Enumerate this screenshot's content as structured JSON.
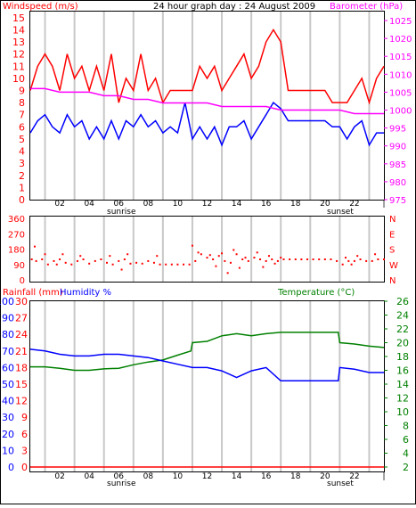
{
  "chart_data": [
    {
      "type": "line",
      "title": "24 hour graph day : 24 August 2009",
      "left_axis_label": "Windspeed (m/s)",
      "right_axis_label": "Barometer (hPa)",
      "left_ticks": [
        "0",
        "1",
        "2",
        "3",
        "4",
        "5",
        "6",
        "7",
        "8",
        "9",
        "10",
        "11",
        "12",
        "13",
        "14",
        "15"
      ],
      "right_ticks": [
        "975",
        "980",
        "985",
        "990",
        "995",
        "1000",
        "1005",
        "1010",
        "1015",
        "1020",
        "1025"
      ],
      "ylim_left": [
        0,
        15.5
      ],
      "ylim_right": [
        975,
        1027.5
      ],
      "x_ticks": [
        "02",
        "04",
        "06",
        "08",
        "10",
        "12",
        "14",
        "16",
        "18",
        "20",
        "22",
        "|"
      ],
      "x_annotations": [
        "sunrise",
        "sunset"
      ],
      "xlim_hours": [
        0,
        24
      ],
      "grid": true,
      "colors": {
        "gust": "#ff0000",
        "average": "#0000ff",
        "barometer": "#ff00ff"
      },
      "series": [
        {
          "role": "gust",
          "x": [
            0,
            0.5,
            1,
            1.5,
            2,
            2.5,
            3,
            3.5,
            4,
            4.5,
            5,
            5.5,
            6,
            6.5,
            7,
            7.5,
            8,
            8.5,
            9,
            9.5,
            10,
            10.5,
            11,
            11.5,
            12,
            12.5,
            13,
            13.5,
            14,
            14.5,
            15,
            15.5,
            16,
            16.5,
            17,
            17.5,
            18,
            18.5,
            19,
            19.5,
            20,
            20.5,
            21,
            21.5,
            22,
            22.5,
            23,
            23.5,
            24
          ],
          "values": [
            9,
            11,
            12,
            11,
            9,
            12,
            10,
            11,
            9,
            11,
            9,
            12,
            8,
            10,
            9,
            12,
            9,
            10,
            8,
            9,
            9,
            9,
            9,
            11,
            10,
            11,
            9,
            10,
            11,
            12,
            10,
            11,
            13,
            14,
            13,
            9,
            9,
            9,
            9,
            9,
            9,
            8,
            8,
            8,
            9,
            10,
            8,
            10,
            11
          ]
        },
        {
          "role": "average",
          "x": [
            0,
            0.5,
            1,
            1.5,
            2,
            2.5,
            3,
            3.5,
            4,
            4.5,
            5,
            5.5,
            6,
            6.5,
            7,
            7.5,
            8,
            8.5,
            9,
            9.5,
            10,
            10.5,
            11,
            11.5,
            12,
            12.5,
            13,
            13.5,
            14,
            14.5,
            15,
            15.5,
            16,
            16.5,
            17,
            17.5,
            18,
            18.5,
            19,
            19.5,
            20,
            20.5,
            21,
            21.5,
            22,
            22.5,
            23,
            23.5,
            24
          ],
          "values": [
            5.5,
            6.5,
            7,
            6,
            5.5,
            7,
            6,
            6.5,
            5,
            6,
            5,
            6.5,
            5,
            6.5,
            6,
            7,
            6,
            6.5,
            5.5,
            6,
            5.5,
            8,
            5,
            6,
            5,
            6,
            4.5,
            6,
            6,
            6.5,
            5,
            6,
            7,
            8,
            7.5,
            6.5,
            6.5,
            6.5,
            6.5,
            6.5,
            6.5,
            6,
            6,
            5,
            6,
            6.5,
            4.5,
            5.5,
            5.5
          ]
        },
        {
          "role": "barometer",
          "x": [
            0,
            1,
            2,
            3,
            4,
            5,
            6,
            7,
            8,
            9,
            10,
            11,
            12,
            13,
            14,
            15,
            16,
            17,
            18,
            19,
            20,
            21,
            22,
            23,
            24
          ],
          "values": [
            1006,
            1006,
            1005,
            1005,
            1005,
            1004,
            1004,
            1003,
            1003,
            1002,
            1002,
            1002,
            1002,
            1001,
            1001,
            1001,
            1001,
            1000,
            1000,
            1000,
            1000,
            1000,
            999,
            999,
            999
          ]
        }
      ]
    },
    {
      "type": "scatter",
      "left_ticks": [
        "0",
        "90",
        "180",
        "270",
        "360"
      ],
      "right_ticks": [
        "N",
        "W",
        "S",
        "E",
        "N"
      ],
      "ylim": [
        0,
        360
      ],
      "x_ticks": [
        "02",
        "04",
        "06",
        "08",
        "10",
        "12",
        "14",
        "16",
        "18",
        "20",
        "22",
        "|"
      ],
      "grid": true,
      "colors": {
        "points": "#ff0000"
      },
      "series": [
        {
          "x": [
            0.1,
            0.4,
            0.8,
            1.2,
            1.6,
            2.0,
            2.4,
            2.8,
            3.2,
            3.6,
            4.0,
            4.4,
            4.8,
            5.2,
            5.6,
            6.0,
            6.4,
            6.8,
            7.2,
            7.6,
            8.0,
            8.4,
            8.8,
            9.2,
            9.6,
            10.0,
            10.4,
            10.8,
            11.2,
            11.6,
            12.0,
            12.4,
            12.8,
            13.2,
            13.6,
            14.0,
            14.4,
            14.8,
            15.2,
            15.6,
            16.0,
            16.4,
            16.8,
            17.2,
            17.6,
            18.0,
            18.4,
            18.8,
            19.2,
            19.6,
            20.0,
            20.4,
            20.8,
            21.2,
            21.6,
            22.0,
            22.4,
            22.8,
            23.2,
            23.6,
            24.0,
            0.3,
            1.0,
            2.2,
            3.4,
            5.4,
            6.6,
            8.6,
            11.0,
            11.4,
            12.2,
            13.0,
            13.8,
            14.6,
            15.4,
            16.2,
            17.0,
            21.4,
            22.2,
            23.4,
            1.8,
            6.2,
            12.6,
            13.4,
            14.2,
            15.8,
            16.6,
            21.8
          ],
          "values": [
            120,
            110,
            120,
            90,
            110,
            120,
            100,
            90,
            110,
            120,
            95,
            110,
            120,
            100,
            90,
            110,
            120,
            95,
            100,
            95,
            110,
            100,
            90,
            90,
            90,
            90,
            90,
            90,
            110,
            150,
            130,
            120,
            140,
            110,
            100,
            150,
            120,
            110,
            130,
            120,
            110,
            120,
            110,
            120,
            120,
            120,
            120,
            120,
            120,
            120,
            120,
            120,
            110,
            90,
            110,
            110,
            120,
            110,
            110,
            120,
            120,
            195,
            150,
            150,
            140,
            140,
            150,
            140,
            200,
            160,
            145,
            155,
            175,
            130,
            160,
            140,
            130,
            130,
            140,
            150,
            90,
            60,
            80,
            40,
            70,
            75,
            95,
            90
          ]
        }
      ]
    },
    {
      "type": "line",
      "left_axis_label": "Rainfall (mm)",
      "left2_axis_label": "Humidity %",
      "right_axis_label": "Temperature (°C)",
      "rain_ticks": [
        "0",
        "3",
        "6",
        "9",
        "12",
        "15",
        "18",
        "21",
        "24",
        "27",
        "30"
      ],
      "humidity_ticks": [
        "0",
        "10",
        "20",
        "30",
        "40",
        "50",
        "60",
        "70",
        "80",
        "90",
        "100"
      ],
      "temp_ticks": [
        "2",
        "4",
        "6",
        "8",
        "10",
        "12",
        "14",
        "16",
        "18",
        "20",
        "22",
        "24",
        "26"
      ],
      "ylim_humidity": [
        0,
        100
      ],
      "ylim_temp": [
        2,
        26
      ],
      "x_ticks": [
        "02",
        "04",
        "06",
        "08",
        "10",
        "12",
        "14",
        "16",
        "18",
        "20",
        "22",
        "|"
      ],
      "x_annotations": [
        "sunrise",
        "sunset"
      ],
      "grid": true,
      "colors": {
        "temperature": "#008000",
        "humidity": "#0000ff",
        "rainfall": "#ff0000"
      },
      "series": [
        {
          "name": "Temperature (°C)",
          "x": [
            0,
            1,
            2,
            3,
            4,
            5,
            6,
            7,
            8,
            9,
            10,
            10.9,
            11,
            12,
            13,
            14,
            15,
            16,
            17,
            18,
            19,
            20,
            20.9,
            21,
            22,
            23,
            24
          ],
          "values": [
            16.5,
            16.5,
            16.3,
            16.0,
            16.0,
            16.2,
            16.3,
            16.8,
            17.2,
            17.5,
            18.2,
            18.8,
            20.0,
            20.2,
            21.0,
            21.3,
            21.0,
            21.3,
            21.5,
            21.5,
            21.5,
            21.5,
            21.5,
            20.0,
            19.8,
            19.5,
            19.3
          ]
        },
        {
          "name": "Humidity %",
          "x": [
            0,
            1,
            2,
            3,
            4,
            5,
            6,
            7,
            8,
            9,
            10,
            11,
            12,
            13,
            14,
            15,
            16,
            17,
            18,
            19,
            20,
            20.9,
            21,
            22,
            23,
            24
          ],
          "values": [
            71,
            70,
            68,
            67,
            67,
            68,
            68,
            67,
            66,
            64,
            62,
            60,
            60,
            58,
            54,
            58,
            60,
            52,
            52,
            52,
            52,
            52,
            60,
            59,
            57,
            57
          ]
        },
        {
          "name": "Rainfall (mm)",
          "x": [
            0,
            24
          ],
          "values": [
            0,
            0
          ]
        }
      ]
    }
  ]
}
